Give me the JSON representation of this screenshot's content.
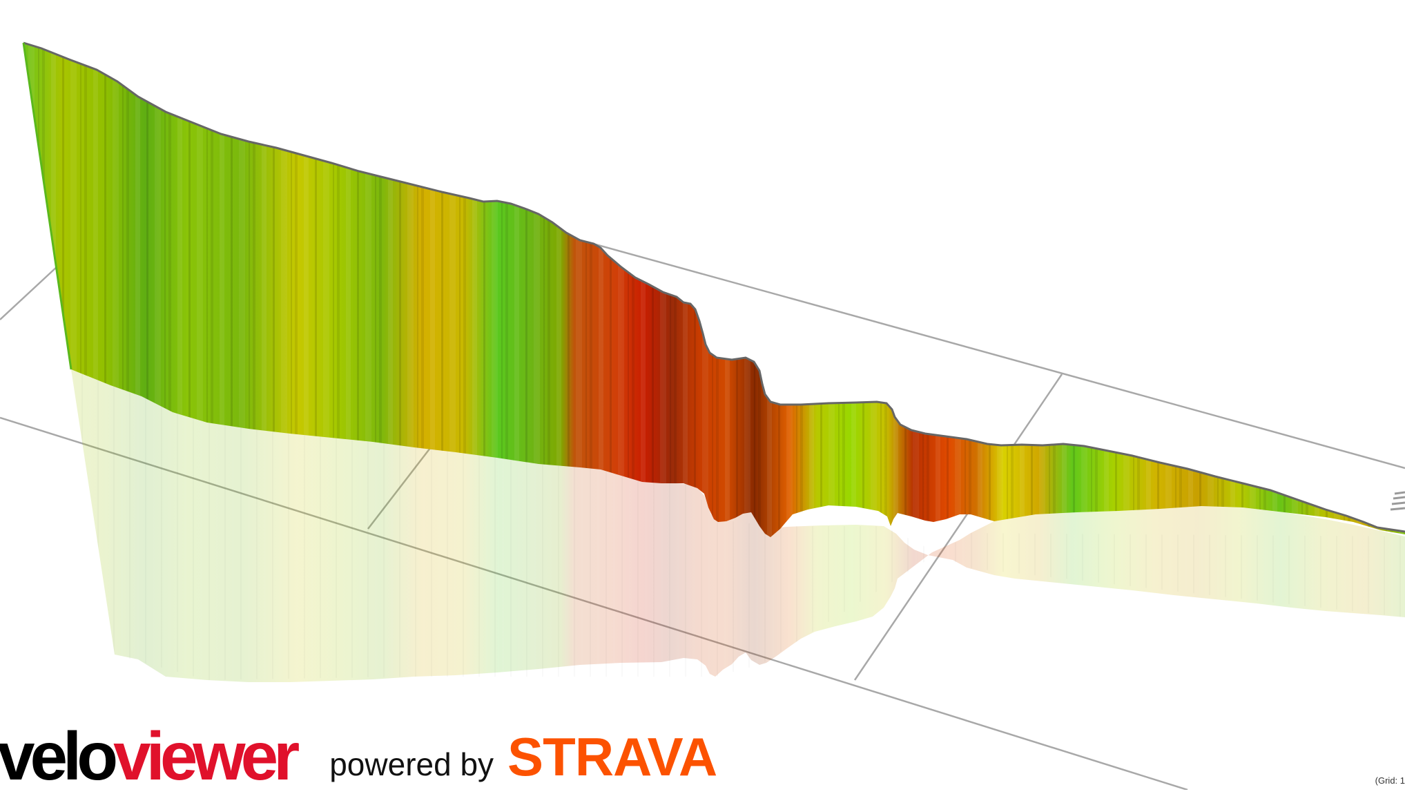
{
  "logo": {
    "part1": "velo",
    "part2": "viewer",
    "part2_color": "#e0112b"
  },
  "powered_by": "powered by",
  "strava": {
    "text": "STRAVA",
    "color": "#fc5200"
  },
  "grid_note": "(Grid: 1",
  "colors": {
    "grid_line": "#a8a8a8",
    "profile_outline": "#666666",
    "gradient_low": "#5cc81e",
    "gradient_mid": "#c8c800",
    "gradient_high": "#c81e00"
  }
}
